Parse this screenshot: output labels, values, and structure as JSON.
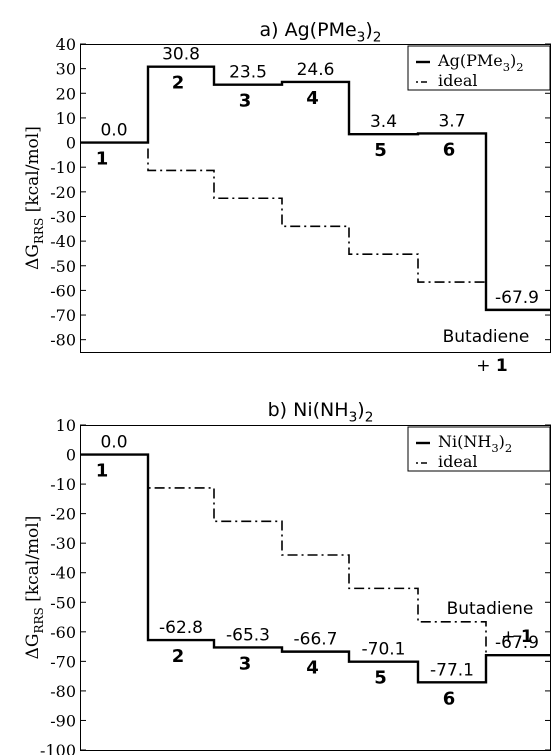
{
  "chart_data": [
    {
      "type": "line",
      "title": "a) Ag(PMe3)2",
      "ylabel": "ΔG_RRS [kcal/mol]",
      "ylim": [
        -85,
        40
      ],
      "yticks": [
        40,
        30,
        20,
        10,
        0,
        -10,
        -20,
        -30,
        -40,
        -50,
        -60,
        -70,
        -80
      ],
      "series": [
        {
          "name": "Ag(PMe3)2",
          "style": "solid",
          "values": [
            0.0,
            30.8,
            23.5,
            24.6,
            3.4,
            3.7,
            -67.9
          ]
        },
        {
          "name": "ideal",
          "style": "dashdot",
          "values": [
            -11.3,
            -22.6,
            -34.0,
            -45.3,
            -56.6
          ]
        }
      ],
      "value_labels": [
        "0.0",
        "30.8",
        "23.5",
        "24.6",
        "3.4",
        "3.7",
        "-67.9"
      ],
      "species_labels": [
        "1",
        "2",
        "3",
        "4",
        "5",
        "6"
      ],
      "final_label": [
        "Butadiene",
        "+ ",
        "1"
      ]
    },
    {
      "type": "line",
      "title": "b) Ni(NH3)2",
      "ylabel": "ΔG_RRS [kcal/mol]",
      "ylim": [
        -100,
        10
      ],
      "yticks": [
        10,
        0,
        -10,
        -20,
        -30,
        -40,
        -50,
        -60,
        -70,
        -80,
        -90,
        -100
      ],
      "series": [
        {
          "name": "Ni(NH3)2",
          "style": "solid",
          "values": [
            0.0,
            -62.8,
            -65.3,
            -66.7,
            -70.1,
            -77.1,
            -67.9
          ]
        },
        {
          "name": "ideal",
          "style": "dashdot",
          "values": [
            -11.3,
            -22.6,
            -34.0,
            -45.3,
            -56.6
          ]
        }
      ],
      "value_labels": [
        "0.0",
        "-62.8",
        "-65.3",
        "-66.7",
        "-70.1",
        "-77.1",
        "-67.9"
      ],
      "species_labels": [
        "1",
        "2",
        "3",
        "4",
        "5",
        "6"
      ],
      "final_label": [
        "Butadiene",
        "+ ",
        "1"
      ]
    }
  ]
}
